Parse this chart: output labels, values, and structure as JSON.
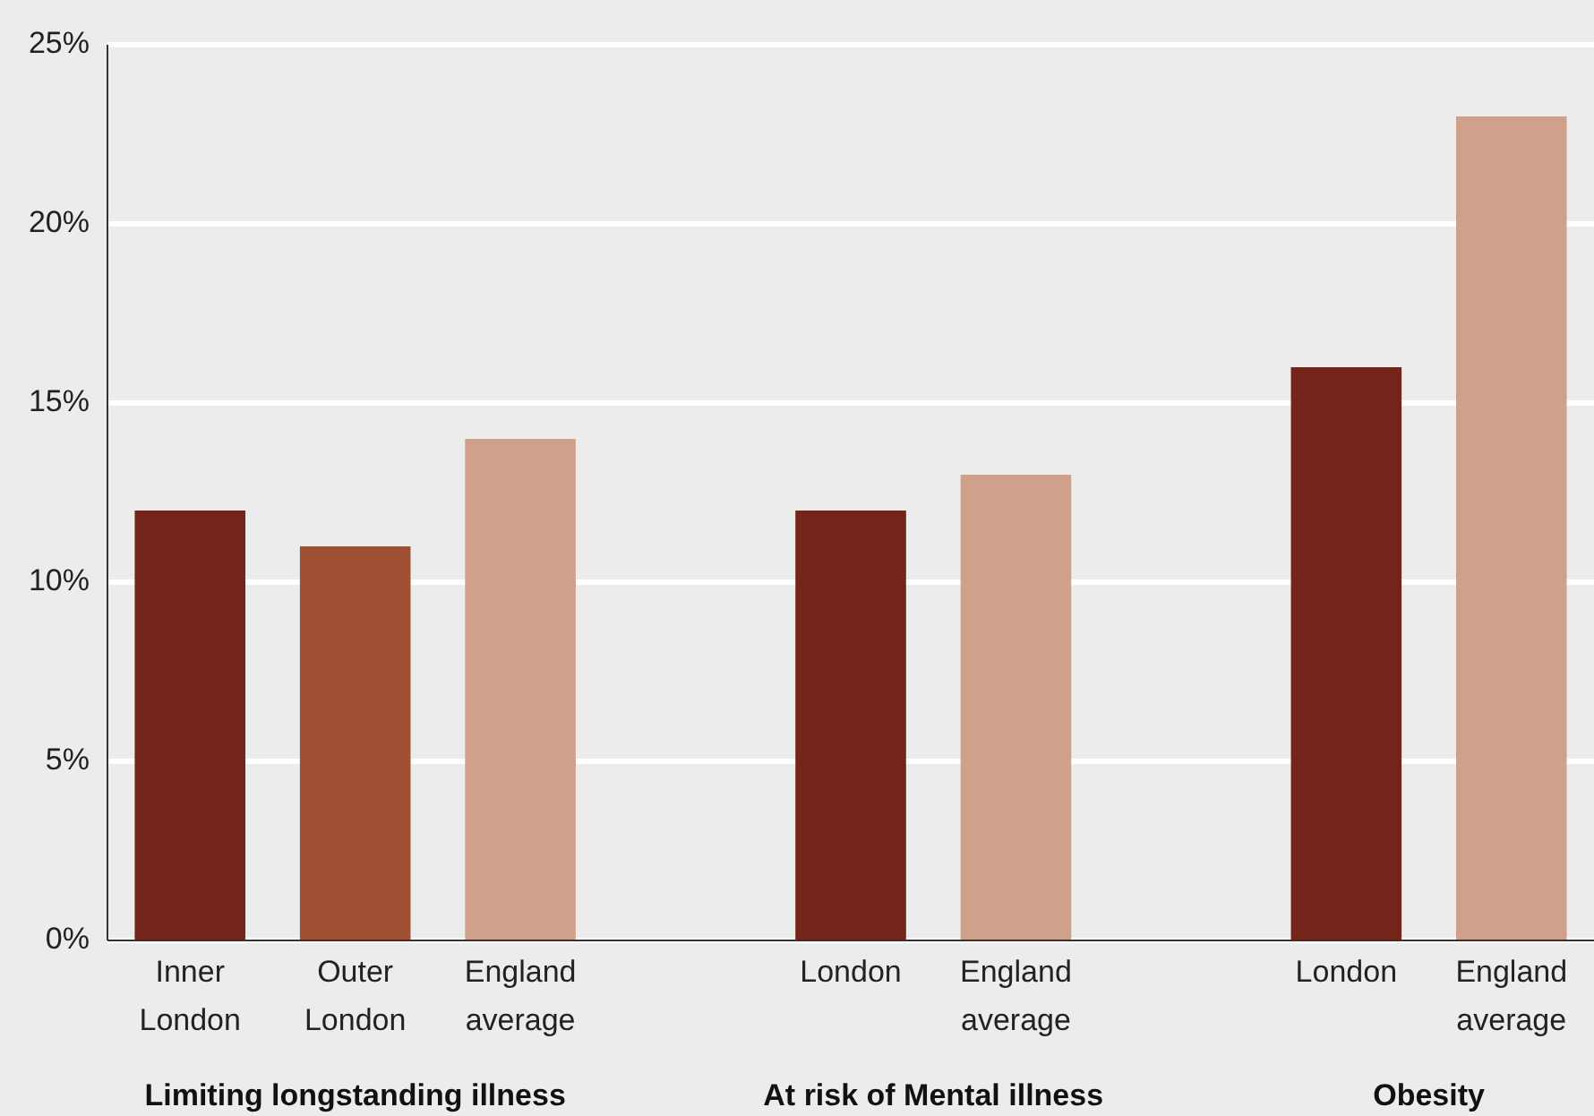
{
  "chart_data": {
    "type": "bar",
    "categories": [
      "Inner London",
      "Outer London",
      "England average",
      null,
      "London",
      "England average",
      null,
      "London",
      "England average"
    ],
    "values": [
      12,
      11,
      14,
      null,
      12,
      13,
      null,
      16,
      23
    ],
    "colors": [
      "#74251a",
      "#a05033",
      "#cfa18a",
      null,
      "#74251a",
      "#cfa18a",
      null,
      "#74251a",
      "#cfa18a"
    ],
    "ylim": [
      0,
      25
    ],
    "yticks": [
      {
        "value": 0,
        "label": "0%"
      },
      {
        "value": 5,
        "label": "5%"
      },
      {
        "value": 10,
        "label": "10%"
      },
      {
        "value": 15,
        "label": "15%"
      },
      {
        "value": 20,
        "label": "20%"
      },
      {
        "value": 25,
        "label": "25%"
      }
    ],
    "grid": "y",
    "annotations": [
      "Limiting longstanding illness",
      "At risk of Mental illness",
      "Obesity"
    ]
  }
}
